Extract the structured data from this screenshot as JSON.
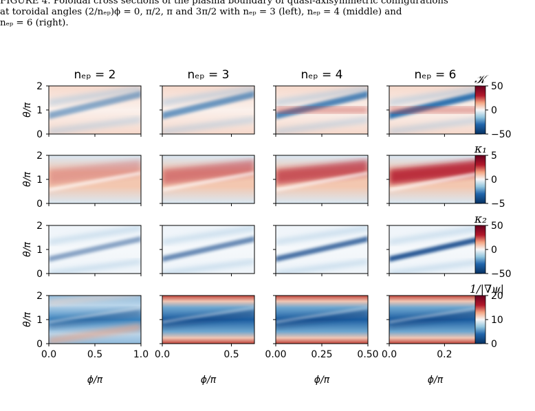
{
  "caption": {
    "line1": "FIGURE 4. Poloidal cross sections of the plasma boundary of quasi-axisymmetric configurations",
    "line2": "at toroidal angles (2/nₑₚ)ϕ = 0, π/2, π and 3π/2 with nₑₚ = 3 (left), nₑₚ = 4 (middle) and",
    "line3": "nₑₚ = 6 (right)."
  },
  "figure": {
    "column_titles": [
      "nₑₚ = 2",
      "nₑₚ = 3",
      "nₑₚ = 4",
      "nₑₚ = 6"
    ],
    "ylabel": "θ/π",
    "xlabel": "ϕ/π",
    "row_labels": [
      "𝒦",
      "κ₁",
      "κ₂",
      "1/|∇ψ|"
    ],
    "y_ticks": [
      "0",
      "1",
      "2"
    ],
    "x_ticks": [
      [
        "0.0",
        "0.5",
        "1.0"
      ],
      [
        "0.0",
        "0.5"
      ],
      [
        "0.00",
        "0.25",
        "0.50"
      ],
      [
        "0.0",
        "0.2"
      ]
    ],
    "colorbar_ticks": [
      [
        "50",
        "0",
        "−50"
      ],
      [
        "5",
        "0",
        "−5"
      ],
      [
        "50",
        "0",
        "−50"
      ],
      [
        "20",
        "10",
        "0"
      ]
    ],
    "colormap": "RdBu_r",
    "colors": {
      "deep_red": "#67001f",
      "red": "#d6604d",
      "white": "#f7f7f7",
      "blue": "#4393c3",
      "deep_blue": "#053061"
    }
  }
}
